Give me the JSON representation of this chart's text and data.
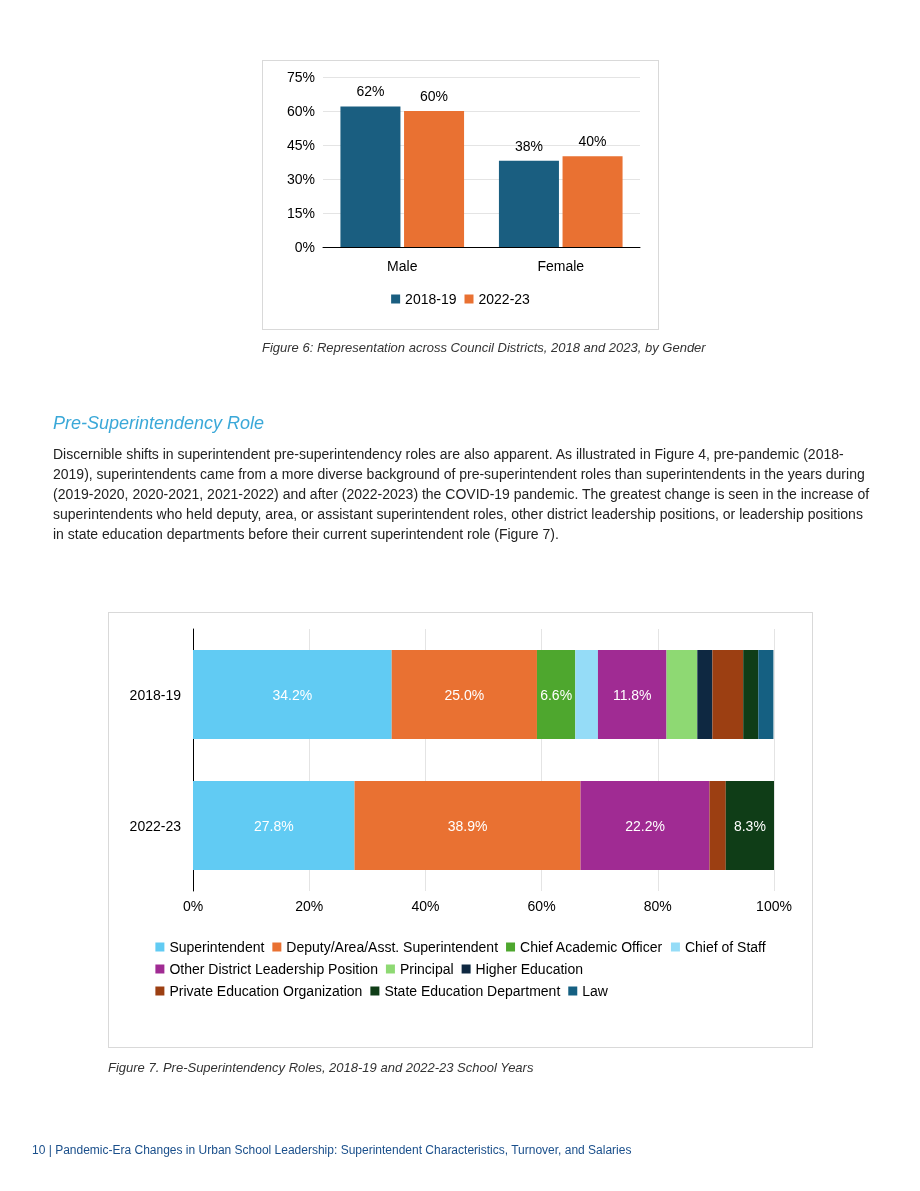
{
  "chart_data": [
    {
      "type": "bar",
      "categories": [
        "Male",
        "Female"
      ],
      "series": [
        {
          "name": "2018-19",
          "color": "#1a5e80",
          "values": [
            62,
            38
          ],
          "value_labels": [
            "62%",
            "38%"
          ]
        },
        {
          "name": "2022-23",
          "color": "#e97132",
          "values": [
            60,
            40
          ],
          "value_labels": [
            "60%",
            "40%"
          ]
        }
      ],
      "ylim": [
        0,
        75
      ],
      "yticks": [
        {
          "value": 0,
          "label": "0%"
        },
        {
          "value": 15,
          "label": "15%"
        },
        {
          "value": 30,
          "label": "30%"
        },
        {
          "value": 45,
          "label": "45%"
        },
        {
          "value": 60,
          "label": "60%"
        },
        {
          "value": 75,
          "label": "75%"
        }
      ],
      "grid": "y",
      "legend": "bottom",
      "annotations": [
        "Figure 6: Representation across Council Districts, 2018 and 2023, by Gender"
      ]
    },
    {
      "type": "bar",
      "orientation": "horizontal",
      "stacked": true,
      "categories": [
        "2018-19",
        "2022-23"
      ],
      "series": [
        {
          "name": "Superintendent",
          "color": "#61cbf3",
          "values": [
            34.2,
            27.8
          ],
          "value_labels": [
            "34.2%",
            "27.8%"
          ]
        },
        {
          "name": "Deputy/Area/Asst. Superintendent",
          "color": "#e97132",
          "values": [
            25.0,
            38.9
          ],
          "value_labels": [
            "25.0%",
            "38.9%"
          ]
        },
        {
          "name": "Chief Academic Officer",
          "color": "#4ea72e",
          "values": [
            6.6,
            0
          ],
          "value_labels": [
            "6.6%",
            null
          ]
        },
        {
          "name": "Chief of Staff",
          "color": "#95dcf7",
          "values": [
            3.9,
            0
          ],
          "value_labels": [
            null,
            null
          ]
        },
        {
          "name": "Other District Leadership Position",
          "color": "#a02b93",
          "values": [
            11.8,
            22.2
          ],
          "value_labels": [
            "11.8%",
            "22.2%"
          ]
        },
        {
          "name": "Principal",
          "color": "#8ed973",
          "values": [
            5.3,
            0
          ],
          "value_labels": [
            null,
            null
          ]
        },
        {
          "name": "Higher Education",
          "color": "#0e2841",
          "values": [
            2.6,
            0
          ],
          "value_labels": [
            null,
            null
          ]
        },
        {
          "name": "Private Education Organization",
          "color": "#9c3f12",
          "values": [
            5.3,
            2.8
          ],
          "value_labels": [
            null,
            null
          ]
        },
        {
          "name": "State Education Department",
          "color": "#0f3d17",
          "values": [
            2.6,
            8.3
          ],
          "value_labels": [
            null,
            "8.3%"
          ]
        },
        {
          "name": "Law",
          "color": "#156082",
          "values": [
            2.6,
            0
          ],
          "value_labels": [
            null,
            null
          ]
        }
      ],
      "xlim": [
        0,
        100
      ],
      "xticks": [
        {
          "value": 0,
          "label": "0%"
        },
        {
          "value": 20,
          "label": "20%"
        },
        {
          "value": 40,
          "label": "40%"
        },
        {
          "value": 60,
          "label": "60%"
        },
        {
          "value": 80,
          "label": "80%"
        },
        {
          "value": 100,
          "label": "100%"
        }
      ],
      "grid": "x",
      "legend": "bottom",
      "annotations": [
        "Pre-Superintendency Role",
        "Discernible shifts in superintendent pre-superintendency roles are also apparent. As illustrated in Figure 4, pre-pandemic (2018-2019), superintendents came from a more diverse background of pre-superintendent roles than superintendents in the years during (2019-2020, 2020-2021, 2021-2022) and after (2022-2023) the COVID-19 pandemic. The greatest change is seen in the increase of superintendents who held deputy, area, or assistant superintendent roles, other district leadership positions, or leadership positions in state education departments before their current superintendent role (Figure 7).",
        "Figure 7. Pre-Superintendency Roles, 2018-19 and 2022-23 School Years",
        "10 | Pandemic-Era Changes in Urban School Leadership: Superintendent Characteristics, Turnover, and Salaries"
      ]
    }
  ]
}
